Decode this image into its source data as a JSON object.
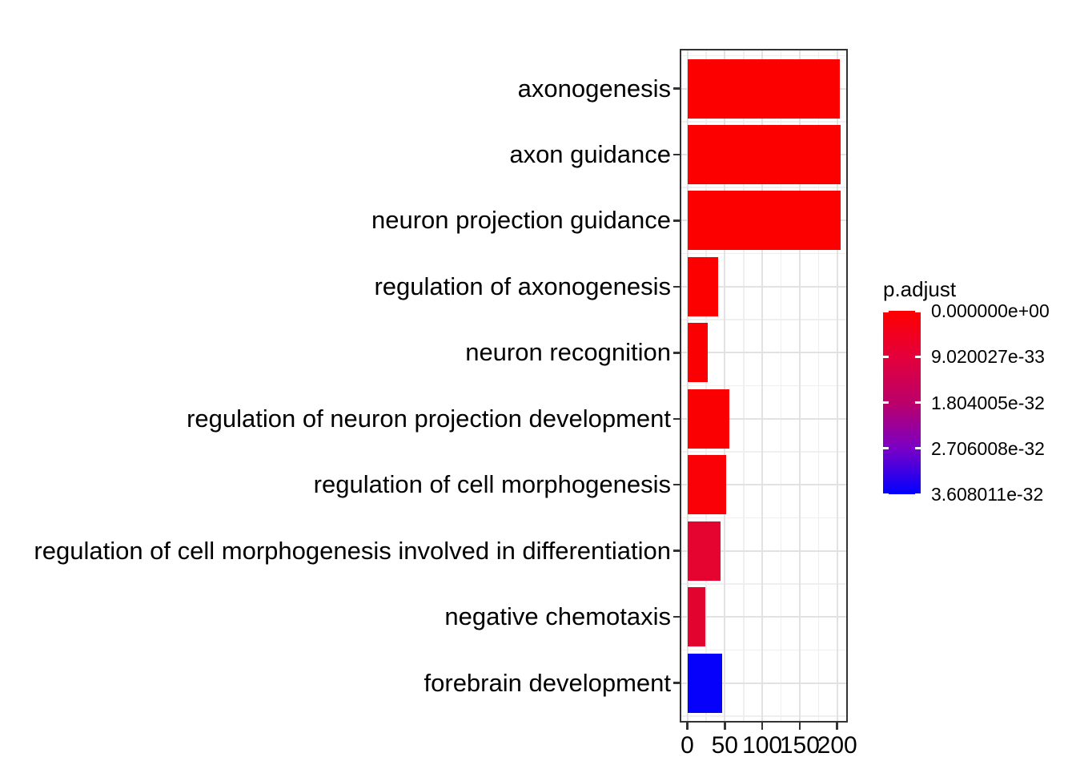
{
  "chart_data": {
    "type": "bar",
    "orientation": "horizontal",
    "title": "",
    "xlabel": "",
    "ylabel": "",
    "categories": [
      "axonogenesis",
      "axon guidance",
      "neuron projection guidance",
      "regulation of axonogenesis",
      "neuron recognition",
      "regulation of neuron projection development",
      "regulation of cell morphogenesis",
      "regulation of cell morphogenesis involved in differentiation",
      "negative chemotaxis",
      "forebrain development"
    ],
    "values": [
      204,
      205,
      205,
      41,
      27,
      56,
      52,
      44,
      24,
      46
    ],
    "bar_colors": [
      "#FC0000",
      "#FC0000",
      "#FC0000",
      "#FC0000",
      "#FB0002",
      "#FB0002",
      "#FA0007",
      "#E50330",
      "#E2042F",
      "#0501FB"
    ],
    "x_tick_labels": [
      "0",
      "50",
      "100",
      "150",
      "200"
    ],
    "x_tick_values": [
      0,
      50,
      100,
      150,
      200
    ],
    "xlim": [
      -10,
      214
    ],
    "grid": "major+minor vertical and horizontal, light grey on white, black panel border",
    "legend": {
      "title": "p.adjust",
      "position": "right",
      "type": "gradient",
      "tick_labels": [
        "0.000000e+00",
        "9.020027e-33",
        "1.804005e-32",
        "2.706008e-32",
        "3.608011e-32"
      ],
      "gradient_stops": [
        "#FF0000",
        "#E4003B",
        "#BB0069",
        "#7B00C6",
        "#0000FF"
      ]
    }
  }
}
